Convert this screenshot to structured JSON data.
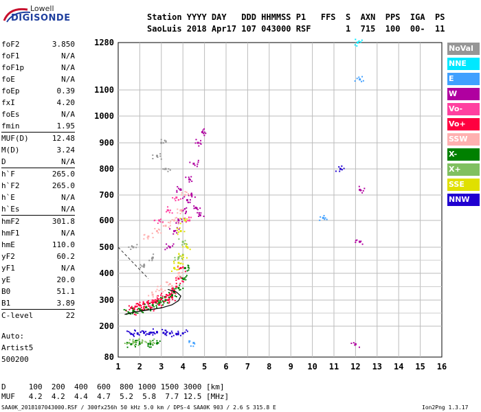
{
  "logo": {
    "line1": "Lowell",
    "line2": "DIGISONDE"
  },
  "header": {
    "labels_line": "Station YYYY DAY   DDD HHMMSS P1   FFS  S  AXN  PPS  IGA  PS",
    "values_line": "SaoLuis 2018 Apr17 107 043000 RSF       1  715  100  00-  11"
  },
  "params": [
    {
      "name": "foF2",
      "value": "3.850"
    },
    {
      "name": "foF1",
      "value": "N/A"
    },
    {
      "name": "foF1p",
      "value": "N/A"
    },
    {
      "name": "foE",
      "value": "N/A"
    },
    {
      "name": "foEp",
      "value": "0.39"
    },
    {
      "name": "fxI",
      "value": "4.20"
    },
    {
      "name": "foEs",
      "value": "N/A"
    },
    {
      "name": "fmin",
      "value": "1.95"
    },
    {
      "name": "MUF(D)",
      "value": "12.48",
      "sep": true
    },
    {
      "name": "M(D)",
      "value": "3.24"
    },
    {
      "name": "D",
      "value": "N/A"
    },
    {
      "name": "h`F",
      "value": "265.0",
      "sep": true
    },
    {
      "name": "h`F2",
      "value": "265.0"
    },
    {
      "name": "h`E",
      "value": "N/A"
    },
    {
      "name": "h`Es",
      "value": "N/A"
    },
    {
      "name": "hmF2",
      "value": "301.8",
      "sep": true
    },
    {
      "name": "hmF1",
      "value": "N/A"
    },
    {
      "name": "hmE",
      "value": "110.0"
    },
    {
      "name": "yF2",
      "value": "60.2"
    },
    {
      "name": "yF1",
      "value": "N/A"
    },
    {
      "name": "yE",
      "value": "20.0"
    },
    {
      "name": "B0",
      "value": "51.1"
    },
    {
      "name": "B1",
      "value": "3.89"
    },
    {
      "name": "C-level",
      "value": "22",
      "sep": true
    }
  ],
  "autoscaling": {
    "line1": "Auto:",
    "line2": "Artist5",
    "line3": "500200"
  },
  "legend": [
    {
      "label": "NoVal",
      "color": "#969696"
    },
    {
      "label": "NNE",
      "color": "#00e8ff"
    },
    {
      "label": "E",
      "color": "#40a0ff"
    },
    {
      "label": "W",
      "color": "#b000a0"
    },
    {
      "label": "Vo-",
      "color": "#ff40a0"
    },
    {
      "label": "Vo+",
      "color": "#ff0040"
    },
    {
      "label": "SSW",
      "color": "#ffb0b0"
    },
    {
      "label": "X-",
      "color": "#008000"
    },
    {
      "label": "X+",
      "color": "#80c060"
    },
    {
      "label": "SSE",
      "color": "#e0e000"
    },
    {
      "label": "NNW",
      "color": "#2000d0"
    }
  ],
  "bottom": {
    "distance_line": "D     100  200  400  600  800 1000 1500 3000 [km]",
    "muf_line": "MUF   4.2  4.2  4.4  4.7  5.2  5.8  7.7 12.5 [MHz]",
    "file_line": "SAA0K_2018107043000.RSF / 300fx256h 50 kHz 5.0 km / DPS-4 SAA0K 903 / 2.6 S 315.8 E",
    "version": "Ion2Png 1.3.17"
  },
  "chart_data": {
    "type": "scatter",
    "title": "",
    "xlabel": "",
    "ylabel": "",
    "xlim": [
      1,
      16
    ],
    "ylim": [
      80,
      1280
    ],
    "x_ticks": [
      "1",
      "2",
      "3",
      "4",
      "5",
      "6",
      "7",
      "8",
      "9",
      "10",
      "11",
      "12",
      "13",
      "14",
      "15",
      "16"
    ],
    "y_ticks": [
      {
        "value": 80,
        "label": "80"
      },
      {
        "value": 200,
        "label": "200"
      },
      {
        "value": 300,
        "label": "300"
      },
      {
        "value": 400,
        "label": "400"
      },
      {
        "value": 500,
        "label": "500"
      },
      {
        "value": 600,
        "label": "600"
      },
      {
        "value": 700,
        "label": "700"
      },
      {
        "value": 800,
        "label": "800"
      },
      {
        "value": 900,
        "label": "900"
      },
      {
        "value": 1000,
        "label": "1000"
      },
      {
        "value": 1100,
        "label": "1100"
      },
      {
        "value": 1280,
        "label": "1280"
      }
    ],
    "y_grid_extra": [
      250,
      350,
      450
    ],
    "scale_note": "virtual height axis non-linear (log-like) below 500 km",
    "series": [
      {
        "name": "Vo+",
        "color": "#ff0040",
        "points": [
          [
            1.6,
            270
          ],
          [
            1.8,
            275
          ],
          [
            2.0,
            280
          ],
          [
            2.2,
            285
          ],
          [
            2.4,
            288
          ],
          [
            2.6,
            292
          ],
          [
            2.8,
            298
          ],
          [
            3.0,
            305
          ],
          [
            3.2,
            312
          ],
          [
            3.4,
            320
          ],
          [
            3.6,
            335
          ],
          [
            3.7,
            350
          ],
          [
            3.8,
            380
          ],
          [
            3.9,
            420
          ],
          [
            1.7,
            255
          ],
          [
            2.1,
            262
          ],
          [
            2.5,
            270
          ],
          [
            2.9,
            282
          ],
          [
            3.3,
            300
          ],
          [
            3.5,
            310
          ]
        ]
      },
      {
        "name": "X-",
        "color": "#008000",
        "points": [
          [
            1.5,
            250
          ],
          [
            1.7,
            258
          ],
          [
            2.0,
            265
          ],
          [
            2.3,
            272
          ],
          [
            2.6,
            280
          ],
          [
            2.9,
            290
          ],
          [
            3.2,
            300
          ],
          [
            3.5,
            318
          ],
          [
            3.8,
            345
          ],
          [
            4.0,
            380
          ],
          [
            4.1,
            420
          ],
          [
            1.6,
            130
          ],
          [
            2.0,
            132
          ],
          [
            2.4,
            131
          ],
          [
            2.8,
            133
          ]
        ]
      },
      {
        "name": "W",
        "color": "#b000a0",
        "points": [
          [
            3.4,
            500
          ],
          [
            3.6,
            560
          ],
          [
            3.8,
            600
          ],
          [
            4.0,
            640
          ],
          [
            4.2,
            680
          ],
          [
            4.4,
            700
          ],
          [
            4.6,
            650
          ],
          [
            4.8,
            620
          ],
          [
            3.9,
            720
          ],
          [
            4.3,
            760
          ],
          [
            4.5,
            820
          ],
          [
            4.7,
            900
          ],
          [
            4.9,
            940
          ],
          [
            12.2,
            720
          ],
          [
            12.2,
            520
          ],
          [
            12.0,
            130
          ]
        ]
      },
      {
        "name": "SSW",
        "color": "#ffb0b0",
        "points": [
          [
            2.4,
            540
          ],
          [
            2.8,
            560
          ],
          [
            3.2,
            580
          ],
          [
            3.6,
            600
          ],
          [
            3.9,
            640
          ],
          [
            4.1,
            700
          ],
          [
            2.6,
            320
          ],
          [
            3.0,
            340
          ],
          [
            3.4,
            360
          ],
          [
            3.8,
            400
          ]
        ]
      },
      {
        "name": "SSE",
        "color": "#e0e000",
        "points": [
          [
            3.6,
            420
          ],
          [
            3.8,
            440
          ],
          [
            4.0,
            470
          ],
          [
            4.2,
            500
          ],
          [
            3.9,
            560
          ],
          [
            4.1,
            600
          ]
        ]
      },
      {
        "name": "NNW",
        "color": "#2000d0",
        "points": [
          [
            1.6,
            170
          ],
          [
            1.9,
            172
          ],
          [
            2.2,
            174
          ],
          [
            2.5,
            175
          ],
          [
            2.8,
            176
          ],
          [
            3.1,
            174
          ],
          [
            3.4,
            172
          ],
          [
            3.7,
            170
          ],
          [
            4.0,
            172
          ],
          [
            11.3,
            800
          ]
        ]
      },
      {
        "name": "X+",
        "color": "#80c060",
        "points": [
          [
            1.5,
            135
          ],
          [
            1.8,
            138
          ],
          [
            2.1,
            136
          ],
          [
            2.5,
            140
          ],
          [
            3.8,
            460
          ],
          [
            4.0,
            520
          ]
        ]
      },
      {
        "name": "E",
        "color": "#40a0ff",
        "points": [
          [
            10.5,
            610
          ],
          [
            12.2,
            1140
          ],
          [
            4.5,
            135
          ]
        ]
      },
      {
        "name": "NNE",
        "color": "#00e8ff",
        "points": [
          [
            12.1,
            1280
          ]
        ]
      },
      {
        "name": "Vo-",
        "color": "#ff40a0",
        "points": [
          [
            2.9,
            600
          ],
          [
            3.3,
            640
          ],
          [
            3.7,
            690
          ],
          [
            4.3,
            600
          ]
        ]
      },
      {
        "name": "NoVal",
        "color": "#969696",
        "points": [
          [
            2.8,
            850
          ],
          [
            3.0,
            900
          ],
          [
            3.2,
            800
          ],
          [
            1.7,
            500
          ],
          [
            2.2,
            430
          ],
          [
            2.6,
            460
          ]
        ]
      }
    ]
  }
}
